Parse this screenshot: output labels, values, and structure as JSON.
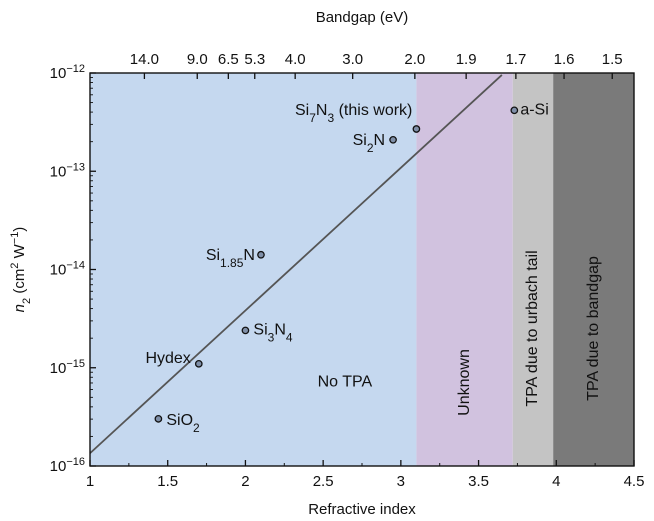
{
  "chart_data": {
    "type": "scatter",
    "xlabel": "Refractive index",
    "x2label": "Bandgap (eV)",
    "ylabel_main": "n",
    "ylabel_sub": "2",
    "ylabel_unit_a": " (cm",
    "ylabel_unit_sup1": "2",
    "ylabel_unit_b": " W",
    "ylabel_unit_sup2": "−1",
    "ylabel_unit_c": ")",
    "xlim": [
      1,
      4.5
    ],
    "ylim_log10": [
      -16,
      -12
    ],
    "yscale": "log",
    "x_ticks": [
      {
        "value": 1,
        "label": "1"
      },
      {
        "value": 1.5,
        "label": "1.5"
      },
      {
        "value": 2,
        "label": "2"
      },
      {
        "value": 2.5,
        "label": "2.5"
      },
      {
        "value": 3,
        "label": "3"
      },
      {
        "value": 3.5,
        "label": "3.5"
      },
      {
        "value": 4,
        "label": "4"
      },
      {
        "value": 4.5,
        "label": "4.5"
      }
    ],
    "y_ticks": [
      {
        "exp": -16,
        "base": "10",
        "sup": "−16"
      },
      {
        "exp": -15,
        "base": "10",
        "sup": "−15"
      },
      {
        "exp": -14,
        "base": "10",
        "sup": "−14"
      },
      {
        "exp": -13,
        "base": "10",
        "sup": "−13"
      },
      {
        "exp": -12,
        "base": "10",
        "sup": "−12"
      }
    ],
    "x2_ticks": [
      {
        "value": 1.35,
        "label": "14.0"
      },
      {
        "value": 1.69,
        "label": "9.0"
      },
      {
        "value": 1.89,
        "label": "6.5"
      },
      {
        "value": 2.06,
        "label": "5.3"
      },
      {
        "value": 2.32,
        "label": "4.0"
      },
      {
        "value": 2.69,
        "label": "3.0"
      },
      {
        "value": 3.09,
        "label": "2.0"
      },
      {
        "value": 3.42,
        "label": "1.9"
      },
      {
        "value": 3.74,
        "label": "1.7"
      },
      {
        "value": 4.05,
        "label": "1.6"
      },
      {
        "value": 4.36,
        "label": "1.5"
      }
    ],
    "regions": [
      {
        "name": "No TPA",
        "x_from": 1.0,
        "x_to": 3.1,
        "color": "#c5d8ef",
        "label_x": 2.64,
        "label_log10": -15.15,
        "rotated": false
      },
      {
        "name": "Unknown",
        "x_from": 3.1,
        "x_to": 3.72,
        "color": "#d1c2df",
        "label_x": 3.41,
        "label_log10": -15.15,
        "rotated": true
      },
      {
        "name": "TPA due to urbach tail",
        "x_from": 3.72,
        "x_to": 3.98,
        "color": "#c4c4c4",
        "label_x": 3.85,
        "label_log10": -14.6,
        "rotated": true
      },
      {
        "name": "TPA due to bandgap",
        "x_from": 3.98,
        "x_to": 4.5,
        "color": "#7a7a7a",
        "label_x": 4.24,
        "label_log10": -14.6,
        "rotated": true
      }
    ],
    "fit_line": {
      "x": [
        1.0,
        3.65
      ],
      "log10_y": [
        -15.87,
        -12.02
      ],
      "color": "#555555"
    },
    "points": [
      {
        "x": 1.44,
        "log10_y": -15.52,
        "label_main": "SiO",
        "label_sub": "2",
        "label_rest": "",
        "label_sub2": "",
        "label_tail": "",
        "anchor": "start",
        "dx": 8,
        "dy": 6
      },
      {
        "x": 1.7,
        "log10_y": -14.96,
        "label_main": "Hydex",
        "label_sub": "",
        "label_rest": "",
        "label_sub2": "",
        "label_tail": "",
        "anchor": "end",
        "dx": -8,
        "dy": -1
      },
      {
        "x": 2.0,
        "log10_y": -14.62,
        "label_main": "Si",
        "label_sub": "3",
        "label_rest": "N",
        "label_sub2": "4",
        "label_tail": "",
        "anchor": "start",
        "dx": 8,
        "dy": 4
      },
      {
        "x": 2.1,
        "log10_y": -13.85,
        "label_main": "Si",
        "label_sub": "1.85",
        "label_rest": "N",
        "label_sub2": "",
        "label_tail": "",
        "anchor": "end",
        "dx": -6,
        "dy": 5
      },
      {
        "x": 2.95,
        "log10_y": -12.68,
        "label_main": "Si",
        "label_sub": "2",
        "label_rest": "N",
        "label_sub2": "",
        "label_tail": "",
        "anchor": "end",
        "dx": -8,
        "dy": 5
      },
      {
        "x": 3.1,
        "log10_y": -12.57,
        "label_main": "Si",
        "label_sub": "7",
        "label_rest": "N",
        "label_sub2": "3",
        "label_tail": " (this work)",
        "anchor": "end",
        "dx": -4,
        "dy": -14
      },
      {
        "x": 3.73,
        "log10_y": -12.38,
        "label_main": "a-Si",
        "label_sub": "",
        "label_rest": "",
        "label_sub2": "",
        "label_tail": "",
        "anchor": "start",
        "dx": 6,
        "dy": 4
      }
    ]
  }
}
